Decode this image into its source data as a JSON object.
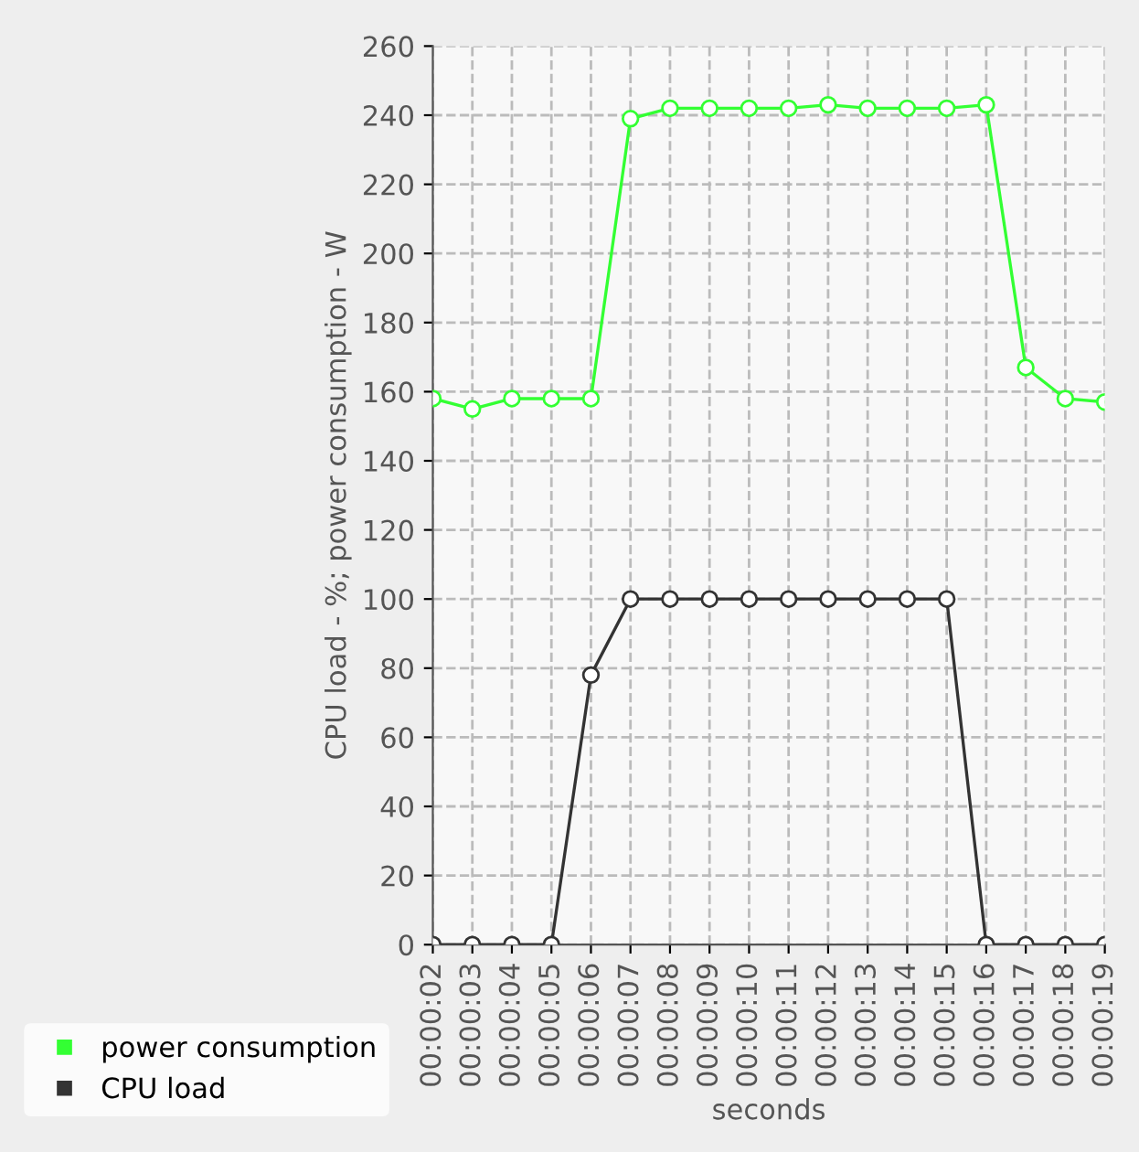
{
  "chart_data": {
    "type": "line",
    "xlabel": "seconds",
    "ylabel": "CPU load - %; power consumption - W",
    "categories": [
      "00:00:02",
      "00:00:03",
      "00:00:04",
      "00:00:05",
      "00:00:06",
      "00:00:07",
      "00:00:08",
      "00:00:09",
      "00:00:10",
      "00:00:11",
      "00:00:12",
      "00:00:13",
      "00:00:14",
      "00:00:15",
      "00:00:16",
      "00:00:17",
      "00:00:18",
      "00:00:19"
    ],
    "series": [
      {
        "name": "power consumption",
        "color": "#33ff33",
        "values": [
          158,
          155,
          158,
          158,
          158,
          239,
          242,
          242,
          242,
          242,
          243,
          242,
          242,
          242,
          243,
          167,
          158,
          157
        ]
      },
      {
        "name": "CPU load",
        "color": "#333333",
        "values": [
          0,
          0,
          0,
          0,
          78,
          100,
          100,
          100,
          100,
          100,
          100,
          100,
          100,
          100,
          0,
          0,
          0,
          0
        ]
      }
    ],
    "ylim": [
      0,
      260
    ],
    "yticks": [
      0,
      20,
      40,
      60,
      80,
      100,
      120,
      140,
      160,
      180,
      200,
      220,
      240,
      260
    ],
    "grid": true,
    "legend": "bottom left",
    "marker": "circle",
    "line_style": "solid"
  }
}
